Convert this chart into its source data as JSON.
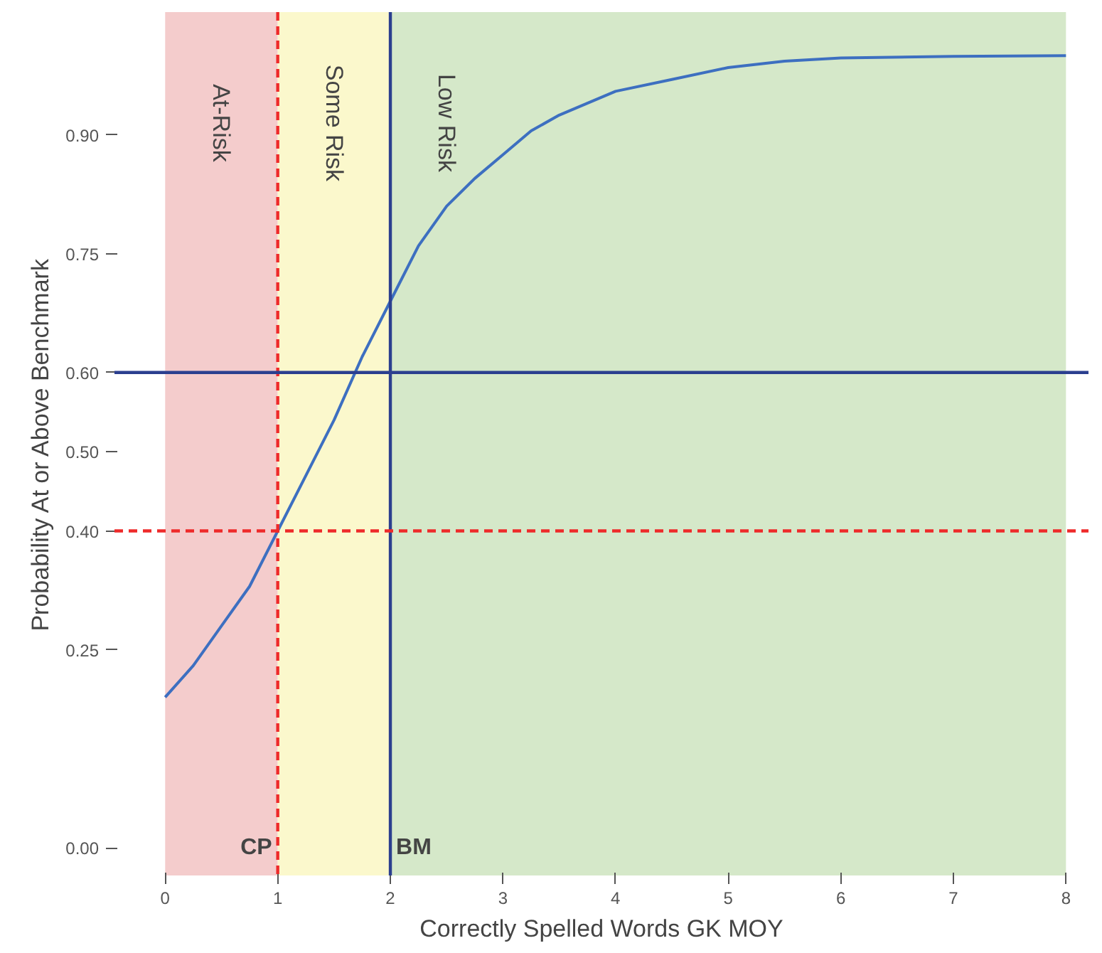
{
  "chart_data": {
    "type": "line",
    "xlabel": "Correctly Spelled Words GK MOY",
    "ylabel": "Probability At or Above Benchmark",
    "x": [
      0,
      0.25,
      0.5,
      0.75,
      1,
      1.25,
      1.5,
      1.75,
      2,
      2.25,
      2.5,
      2.75,
      3,
      3.25,
      3.5,
      3.75,
      4,
      4.5,
      5,
      5.5,
      6,
      7,
      8
    ],
    "series": [
      {
        "color": "#3d6fc0",
        "values": [
          0.19,
          0.23,
          0.28,
          0.33,
          0.4,
          0.47,
          0.54,
          0.62,
          0.69,
          0.76,
          0.81,
          0.845,
          0.875,
          0.905,
          0.925,
          0.94,
          0.955,
          0.97,
          0.985,
          0.993,
          0.997,
          0.999,
          1.0
        ]
      }
    ],
    "xlim": [
      -0.45,
      8.2
    ],
    "ylim": [
      -0.035,
      1.055
    ],
    "xticks": [
      0,
      1,
      2,
      3,
      4,
      5,
      6,
      7,
      8
    ],
    "yticks": [
      {
        "value": 0,
        "label": "0.00"
      },
      0.25,
      {
        "value": 0.4,
        "label": "0.40"
      },
      {
        "value": 0.5,
        "label": "0.50"
      },
      {
        "value": 0.6,
        "label": "0.60"
      },
      0.75,
      {
        "value": 0.9,
        "label": "0.90"
      }
    ],
    "grid": false,
    "line_style": "solid",
    "marker": "none",
    "bands": [
      {
        "axis": "x",
        "from": 0,
        "to": 1,
        "label": "At-Risk",
        "color": "#f4cccc"
      },
      {
        "axis": "x",
        "from": 1,
        "to": 2,
        "label": "Some Risk",
        "color": "#fbf8cc"
      },
      {
        "axis": "x",
        "from": 2,
        "to": 8,
        "label": "Low Risk",
        "color": "#d5e8c9"
      }
    ],
    "ref_lines": [
      {
        "axis": "x",
        "value": 1,
        "label": "CP",
        "color": "#ee2a2a",
        "line_style": "dashed"
      },
      {
        "axis": "x",
        "value": 2,
        "label": "BM",
        "color": "#2b3f8f",
        "line_style": "solid"
      },
      {
        "axis": "y",
        "value": 0.4,
        "label": null,
        "color": "#ee2a2a",
        "line_style": "dashed"
      },
      {
        "axis": "y",
        "value": 0.6,
        "label": null,
        "color": "#2b3f8f",
        "line_style": "solid"
      }
    ]
  }
}
